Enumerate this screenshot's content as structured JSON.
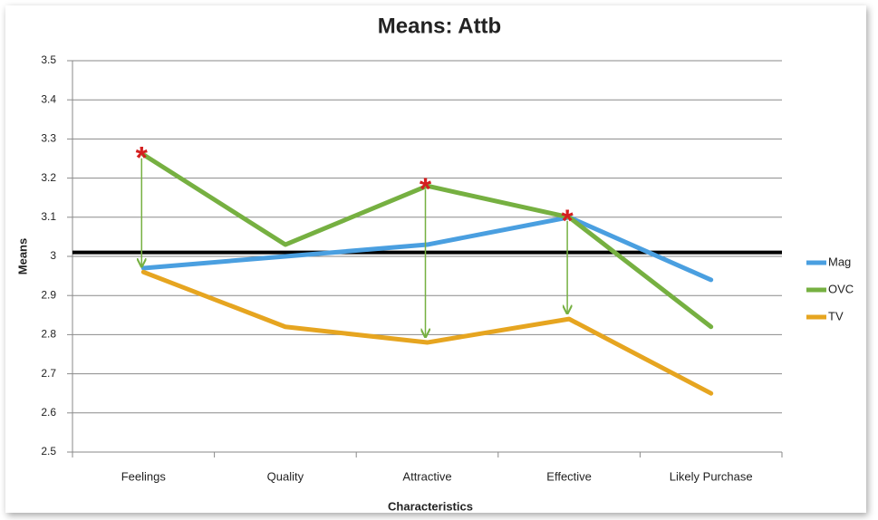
{
  "chart_data": {
    "type": "line",
    "title": "Means: Attb",
    "x_label": "Characteristics",
    "y_label": "Means",
    "categories": [
      "Feelings",
      "Quality",
      "Attractive",
      "Effective",
      "Likely Purchase"
    ],
    "series": [
      {
        "name": "Mag",
        "color": "#4a9fe0",
        "values": [
          2.97,
          3.0,
          3.03,
          3.1,
          2.94
        ]
      },
      {
        "name": "OVC",
        "color": "#76b041",
        "values": [
          3.26,
          3.03,
          3.18,
          3.1,
          2.82
        ]
      },
      {
        "name": "TV",
        "color": "#e6a520",
        "values": [
          2.96,
          2.82,
          2.78,
          2.84,
          2.65
        ]
      }
    ],
    "reference_line": 3.01,
    "annotations": [
      {
        "text": "*",
        "x": "Feelings"
      },
      {
        "text": "*",
        "x": "Attractive"
      },
      {
        "text": "*",
        "x": "Effective"
      }
    ],
    "ylim": [
      2.5,
      3.5
    ],
    "yticks": [
      2.5,
      2.6,
      2.7,
      2.8,
      2.9,
      3,
      3.1,
      3.2,
      3.3,
      3.4,
      3.5
    ],
    "grid": true,
    "legend": "right"
  }
}
